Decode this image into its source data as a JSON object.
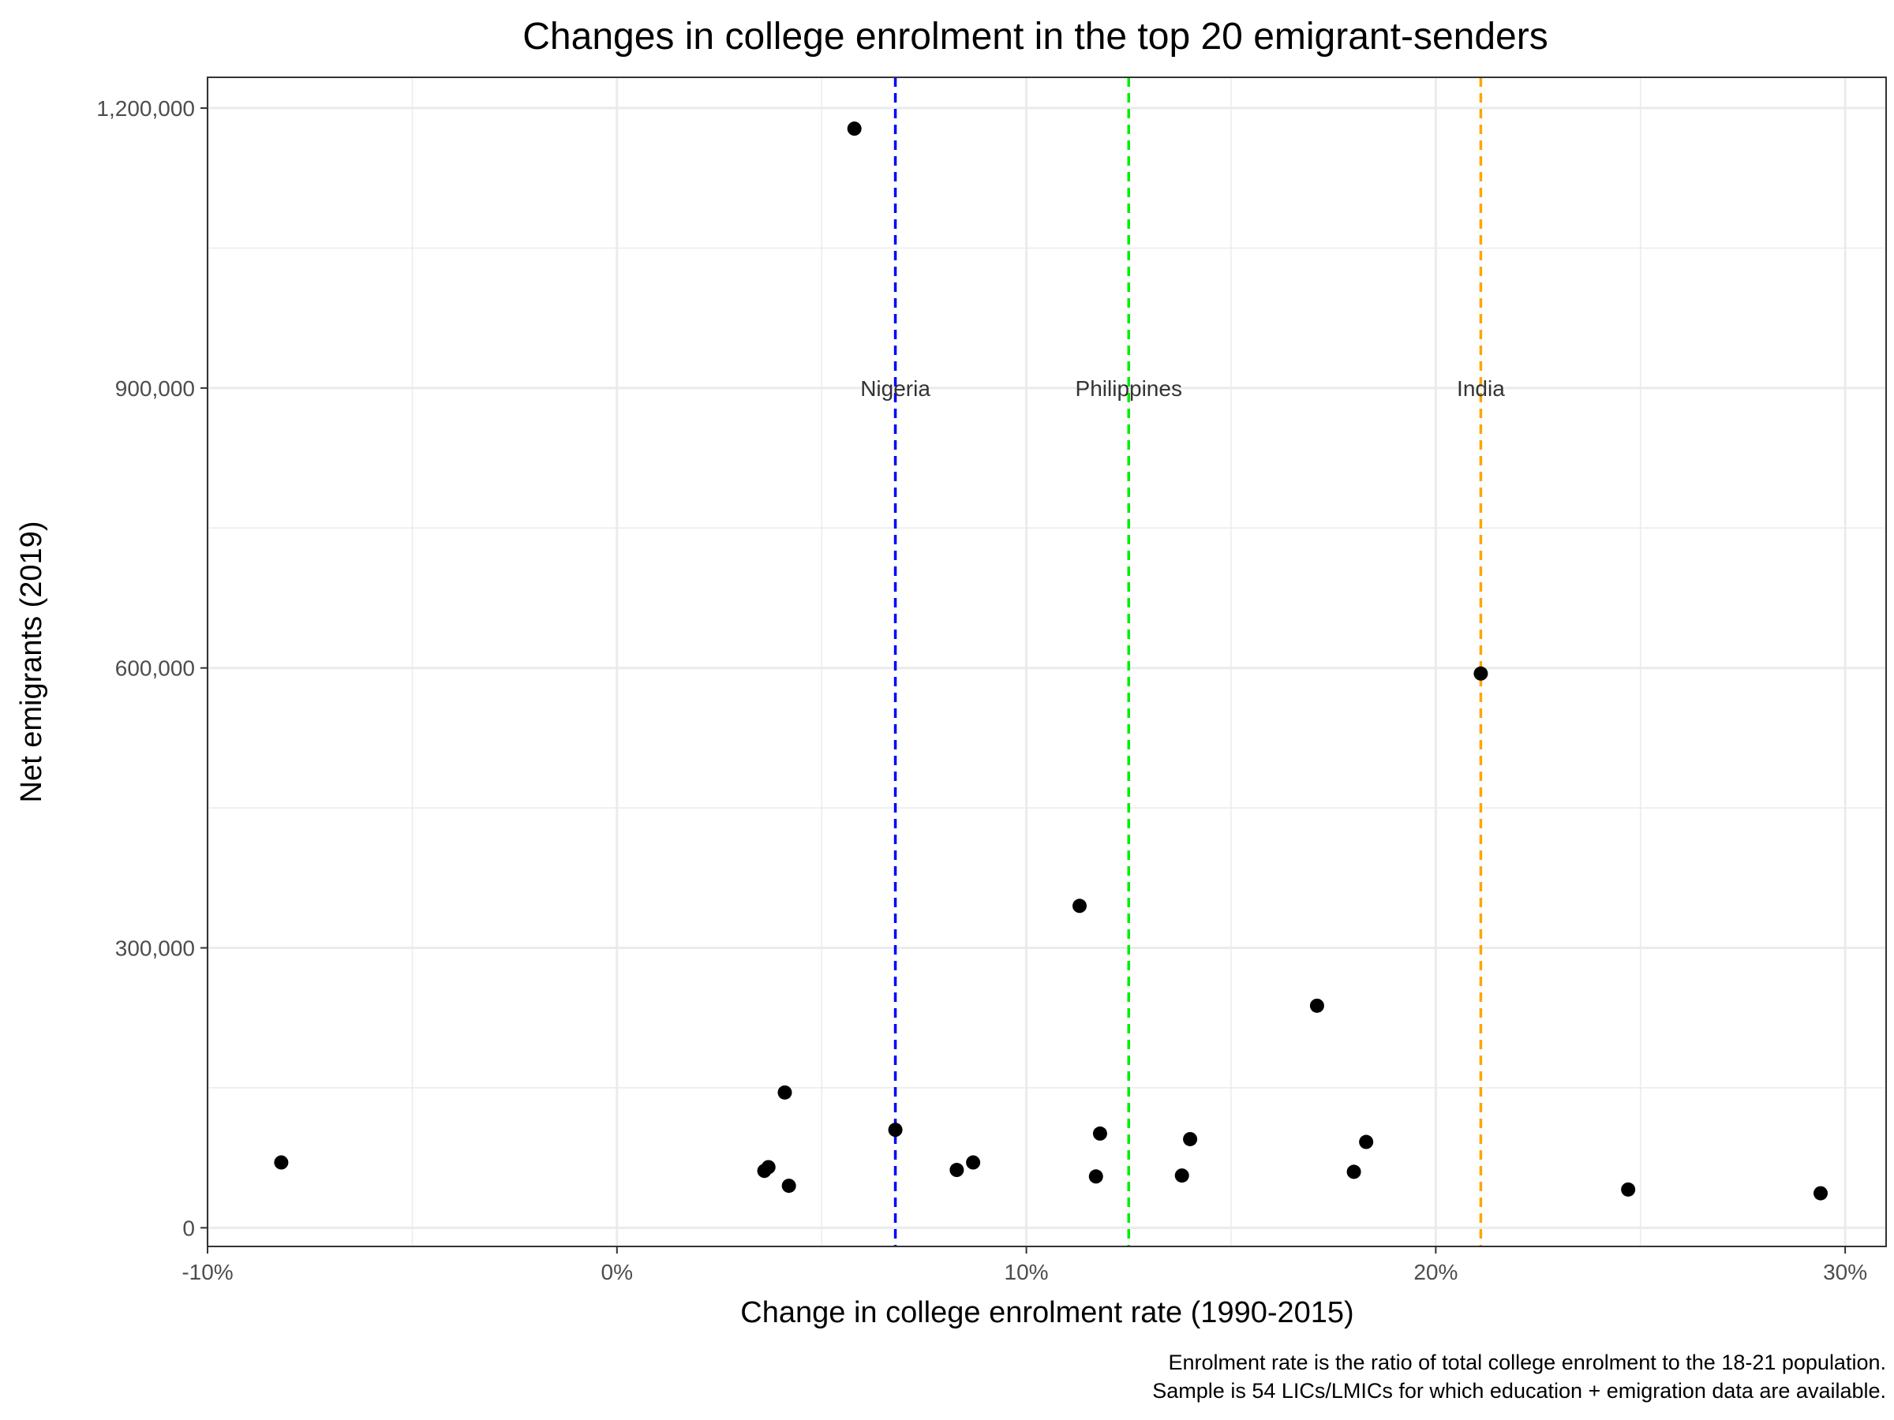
{
  "chart_data": {
    "type": "scatter",
    "title": "Changes in college enrolment in the top 20 emigrant-senders",
    "xlabel": "Change in college enrolment rate (1990-2015)",
    "ylabel": "Net emigrants (2019)",
    "caption_lines": [
      "Enrolment rate is the ratio of total college enrolment to the 18-21 population.",
      "Sample is 54 LICs/LMICs for which education + emigration data are available."
    ],
    "xlim": [
      -10,
      31
    ],
    "ylim": [
      -20000,
      1233000
    ],
    "x_ticks": [
      -10,
      0,
      10,
      20,
      30
    ],
    "x_tick_labels": [
      "-10%",
      "0%",
      "10%",
      "20%",
      "30%"
    ],
    "x_minor": [
      -5,
      5,
      15,
      25
    ],
    "y_ticks": [
      0,
      300000,
      600000,
      900000,
      1200000
    ],
    "y_tick_labels": [
      "0",
      "300,000",
      "600,000",
      "900,000",
      "1,200,000"
    ],
    "y_minor": [
      150000,
      450000,
      750000,
      1050000
    ],
    "grid": true,
    "points": [
      {
        "x": -8.2,
        "y": 70000
      },
      {
        "x": 3.6,
        "y": 61000
      },
      {
        "x": 3.7,
        "y": 65000
      },
      {
        "x": 4.1,
        "y": 145000
      },
      {
        "x": 4.2,
        "y": 45000
      },
      {
        "x": 5.8,
        "y": 1178000
      },
      {
        "x": 6.8,
        "y": 105000
      },
      {
        "x": 8.3,
        "y": 62000
      },
      {
        "x": 8.7,
        "y": 70000
      },
      {
        "x": 11.3,
        "y": 345000
      },
      {
        "x": 11.7,
        "y": 55000
      },
      {
        "x": 11.8,
        "y": 101000
      },
      {
        "x": 13.8,
        "y": 56000
      },
      {
        "x": 14.0,
        "y": 95000
      },
      {
        "x": 17.1,
        "y": 238000
      },
      {
        "x": 18.0,
        "y": 60000
      },
      {
        "x": 18.3,
        "y": 92000
      },
      {
        "x": 21.1,
        "y": 594000
      },
      {
        "x": 24.7,
        "y": 41000
      },
      {
        "x": 29.4,
        "y": 37000
      }
    ],
    "reference_lines": [
      {
        "label": "Nigeria",
        "x": 6.8,
        "color": "#0000ff"
      },
      {
        "label": "Philippines",
        "x": 12.5,
        "color": "#00ee00"
      },
      {
        "label": "India",
        "x": 21.1,
        "color": "#ffa500"
      }
    ],
    "reference_label_y": 900000,
    "colors": {
      "point": "#000000",
      "grid": "#ebebeb",
      "panel_border": "#333333"
    }
  }
}
